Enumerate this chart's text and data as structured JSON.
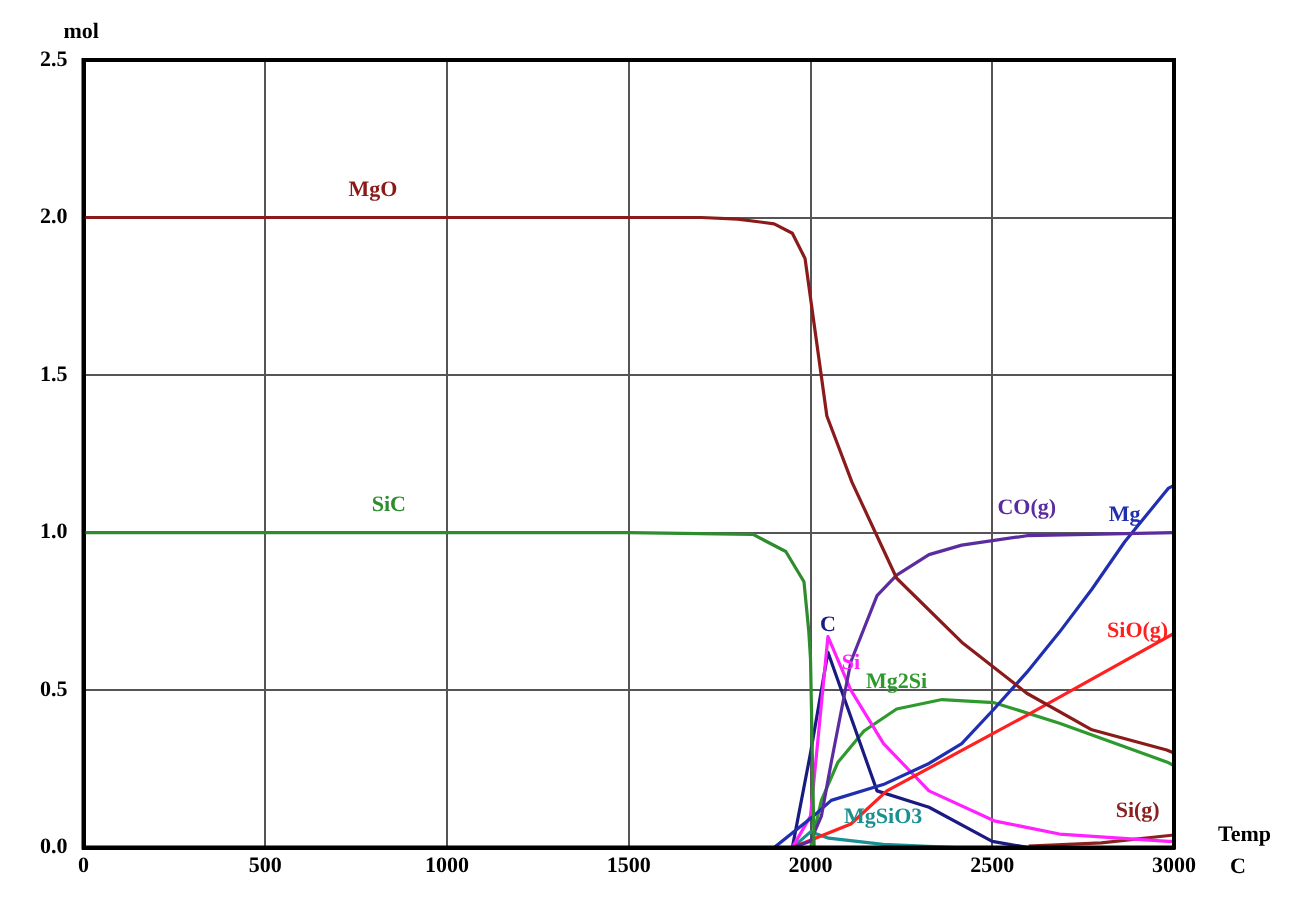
{
  "chart_data": {
    "type": "line",
    "xlabel": "Temp C",
    "ylabel": "mol",
    "xlim": [
      0,
      3000
    ],
    "ylim": [
      0,
      2.5
    ],
    "xticks": [
      0,
      500,
      1000,
      1500,
      2000,
      2500,
      3000
    ],
    "yticks": [
      {
        "value": 0,
        "label": "0.0"
      },
      {
        "value": 0.5,
        "label": "0.5"
      },
      {
        "value": 1,
        "label": "1.0"
      },
      {
        "value": 1.5,
        "label": "1.5"
      },
      {
        "value": 2,
        "label": "2.0"
      },
      {
        "value": 2.5,
        "label": "2.5"
      }
    ],
    "grid": true,
    "legend": false,
    "marker": "none",
    "line_style": "solid",
    "series": [
      {
        "color": "#8b1a1a",
        "x": [
          0,
          1500,
          1700,
          1800,
          1900,
          1950,
          1985,
          2045,
          2114,
          2237,
          2416,
          2595,
          2774,
          2980,
          3000
        ],
        "values": [
          2.0,
          2.0,
          2.0,
          1.995,
          1.98,
          1.95,
          1.87,
          1.37,
          1.16,
          0.855,
          0.652,
          0.49,
          0.374,
          0.31,
          0.3
        ]
      },
      {
        "color": "#2e8b2e",
        "x": [
          0,
          1500,
          1842,
          1932,
          1982,
          1995,
          2000,
          2010
        ],
        "values": [
          1.0,
          1.0,
          0.994,
          0.94,
          0.844,
          0.69,
          0.6,
          0
        ]
      },
      {
        "color": "#5b2c9f",
        "x": [
          1950,
          2000,
          2030,
          2057,
          2111,
          2183,
          2237,
          2326,
          2416,
          2595,
          3000
        ],
        "values": [
          0,
          0.02,
          0.1,
          0.27,
          0.59,
          0.8,
          0.865,
          0.93,
          0.96,
          0.99,
          1.0
        ]
      },
      {
        "color": "#1f2fb0",
        "x": [
          1900,
          2004,
          2057,
          2200,
          2326,
          2416,
          2505,
          2595,
          2685,
          2774,
          2864,
          2984,
          3000
        ],
        "values": [
          0,
          0.096,
          0.15,
          0.2,
          0.267,
          0.33,
          0.44,
          0.556,
          0.684,
          0.82,
          0.97,
          1.14,
          1.15
        ]
      },
      {
        "color": "#ff2020",
        "x": [
          1950,
          2111,
          2210,
          2595,
          3000
        ],
        "values": [
          0,
          0.075,
          0.18,
          0.42,
          0.68
        ]
      },
      {
        "color": "#ff22ff",
        "x": [
          1950,
          2000,
          2048,
          2111,
          2201,
          2326,
          2505,
          2685,
          2984,
          3000
        ],
        "values": [
          0,
          0.1,
          0.67,
          0.5,
          0.33,
          0.18,
          0.085,
          0.043,
          0.02,
          0.02
        ]
      },
      {
        "color": "#1a1a80",
        "x": [
          1950,
          2000,
          2048,
          2183,
          2326,
          2500,
          2600
        ],
        "values": [
          0,
          0.3,
          0.62,
          0.18,
          0.128,
          0.02,
          0
        ]
      },
      {
        "color": "#2e9a2e",
        "x": [
          2000,
          2030,
          2075,
          2147,
          2237,
          2362,
          2505,
          2685,
          2864,
          2984,
          3000
        ],
        "values": [
          0,
          0.15,
          0.27,
          0.37,
          0.44,
          0.47,
          0.46,
          0.395,
          0.32,
          0.27,
          0.26
        ]
      },
      {
        "color": "#1a9090",
        "x": [
          1950,
          2000,
          2050,
          2200,
          2400
        ],
        "values": [
          0,
          0.05,
          0.03,
          0.01,
          0
        ]
      },
      {
        "color": "#8b2020",
        "x": [
          2600,
          2800,
          3000
        ],
        "values": [
          0.005,
          0.015,
          0.04
        ]
      }
    ],
    "annotations": [
      {
        "text": "MgO",
        "x": 796,
        "y": 2.0
      },
      {
        "text": "SiC",
        "x": 840,
        "y": 1.0
      },
      {
        "text": "CO(g)",
        "x": 2595,
        "y": 0.99
      },
      {
        "text": "Mg",
        "x": 2864,
        "y": 0.97
      },
      {
        "text": "SiO(g)",
        "x": 2900,
        "y": 0.6
      },
      {
        "text": "Si",
        "x": 2111,
        "y": 0.5
      },
      {
        "text": "C",
        "x": 2048,
        "y": 0.62
      },
      {
        "text": "Mg2Si",
        "x": 2237,
        "y": 0.44
      },
      {
        "text": "MgSiO3",
        "x": 2200,
        "y": 0.01
      },
      {
        "text": "Si(g)",
        "x": 2900,
        "y": 0.03
      }
    ]
  }
}
